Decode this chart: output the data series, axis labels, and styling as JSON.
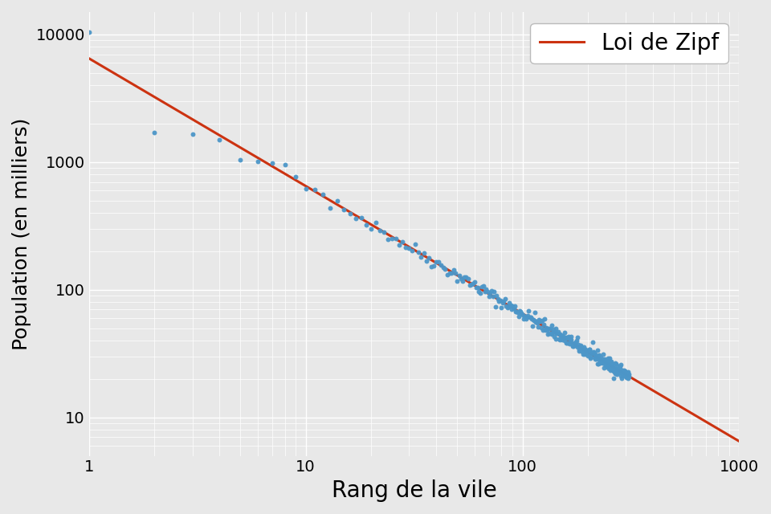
{
  "xlabel": "Rang de la vile",
  "ylabel": "Population (en milliers)",
  "legend_label": "Loi de Zipf",
  "xlim": [
    1,
    1000
  ],
  "ylim": [
    5,
    15000
  ],
  "background_color": "#E8E8E8",
  "scatter_color": "#4C96C8",
  "line_color": "#CC3311",
  "xlabel_fontsize": 20,
  "ylabel_fontsize": 18,
  "legend_fontsize": 20,
  "A": 6500,
  "n_cities": 310,
  "scatter_size": 18,
  "line_width": 2.2
}
